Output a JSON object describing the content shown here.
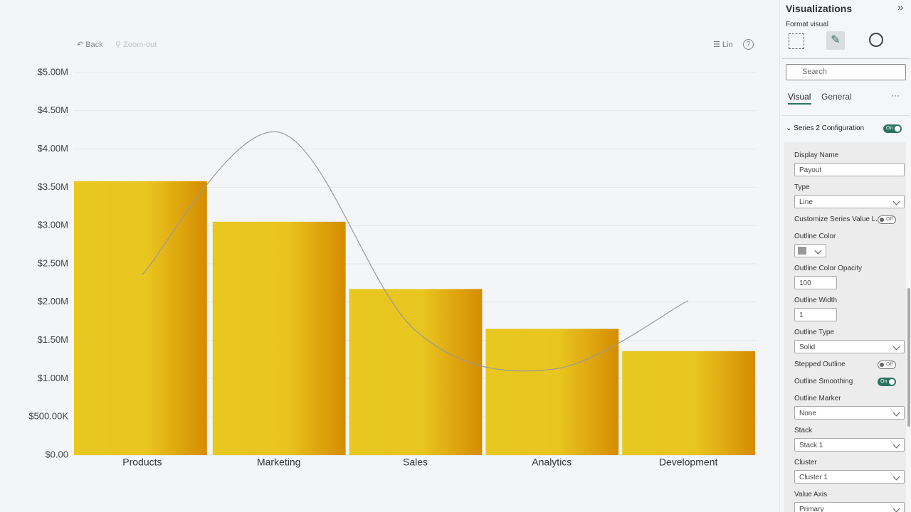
{
  "chart_data": {
    "type": "bar-line",
    "categories": [
      "Products",
      "Marketing",
      "Sales",
      "Analytics",
      "Development"
    ],
    "series": [
      {
        "type": "bar",
        "color": "#e8c81e",
        "values": [
          3580000,
          3050000,
          2170000,
          1650000,
          1360000
        ]
      },
      {
        "type": "line",
        "name": "Payout",
        "color": "#9a9a9a",
        "values": [
          2360000,
          4220000,
          1630000,
          1120000,
          2020000
        ]
      }
    ],
    "ylim": [
      0,
      5000000
    ],
    "yticks": [
      {
        "value": 0,
        "label": "$0.00"
      },
      {
        "value": 500000,
        "label": "$500.00K"
      },
      {
        "value": 1000000,
        "label": "$1.00M"
      },
      {
        "value": 1500000,
        "label": "$1.50M"
      },
      {
        "value": 2000000,
        "label": "$2.00M"
      },
      {
        "value": 2500000,
        "label": "$2.50M"
      },
      {
        "value": 3000000,
        "label": "$3.00M"
      },
      {
        "value": 3500000,
        "label": "$3.50M"
      },
      {
        "value": 4000000,
        "label": "$4.00M"
      },
      {
        "value": 4500000,
        "label": "$4.50M"
      },
      {
        "value": 5000000,
        "label": "$5.00M"
      }
    ],
    "grid": true,
    "smooth": true
  },
  "toolbar": {
    "back": "Back",
    "zoom": "Zoom-out",
    "scale": "Lin",
    "help": "?"
  },
  "pane": {
    "title": "Visualizations",
    "subtitle": "Format visual",
    "search": "Search",
    "tabs": [
      "Visual",
      "General"
    ],
    "more": "···",
    "section": {
      "title": "Series 2 Configuration",
      "toggle": "On"
    },
    "fields": [
      {
        "label": "Display Name"
      },
      {
        "label": "Type",
        "value": "Line"
      },
      {
        "label": "Customize Series Value L...",
        "toggle": "Off"
      },
      {
        "label": "Outline Color"
      },
      {
        "label": "Outline Color Opacity",
        "value": 100
      },
      {
        "label": "Outline Width",
        "value": 1
      },
      {
        "label": "Outline Type",
        "value": "Solid"
      },
      {
        "label": "Stepped Outline",
        "toggle": "Off"
      },
      {
        "label": "Outline Smoothing",
        "toggle": "On"
      },
      {
        "label": "Outline Marker",
        "value": "None"
      },
      {
        "label": "Stack",
        "value": "Stack 1"
      },
      {
        "label": "Cluster",
        "value": "Cluster 1"
      },
      {
        "label": "Value Axis",
        "value": "Primary"
      }
    ]
  }
}
